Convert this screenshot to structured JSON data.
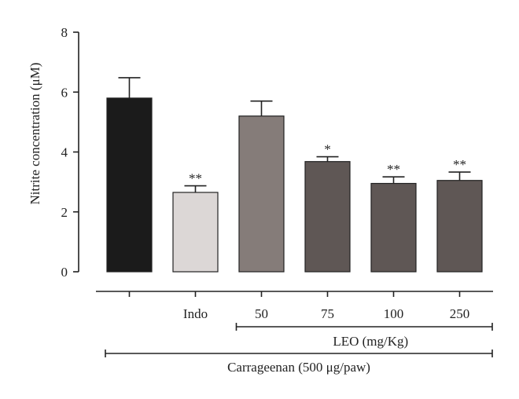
{
  "chart_data": {
    "type": "bar",
    "ylabel": "Nitrite concentration (μM)",
    "ylim": [
      0,
      8
    ],
    "yticks": [
      "0",
      "2",
      "4",
      "6",
      "8"
    ],
    "categories": [
      "",
      "Indo",
      "50",
      "75",
      "100",
      "250"
    ],
    "values": [
      5.8,
      2.65,
      5.2,
      3.68,
      2.95,
      3.05
    ],
    "errors": [
      0.68,
      0.22,
      0.5,
      0.16,
      0.22,
      0.28
    ],
    "significance": [
      "",
      "**",
      "",
      "*",
      "**",
      "**"
    ],
    "colors": [
      "#1b1b1b",
      "#dcd7d6",
      "#857c79",
      "#5f5755",
      "#5f5755",
      "#5f5755"
    ],
    "groups": [
      {
        "label": "LEO (mg/Kg)",
        "from": 2,
        "to": 5
      },
      {
        "label": "Carrageenan (500 μg/paw)",
        "from": 0,
        "to": 5
      }
    ],
    "grid": false
  }
}
